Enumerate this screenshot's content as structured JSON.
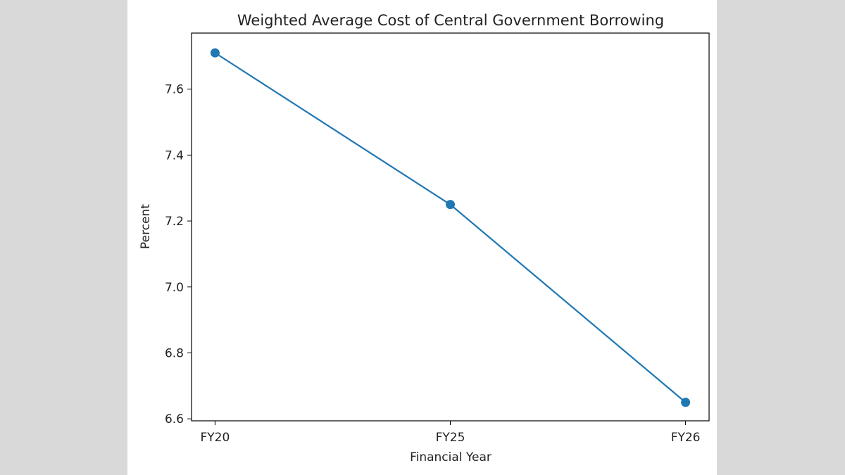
{
  "chart_data": {
    "type": "line",
    "title": "Weighted Average Cost of Central Government Borrowing",
    "xlabel": "Financial Year",
    "ylabel": "Percent",
    "categories": [
      "FY20",
      "FY25",
      "FY26"
    ],
    "values": [
      7.71,
      7.25,
      6.65
    ],
    "ylim": [
      6.594,
      7.77
    ],
    "yticks": [
      6.6,
      6.8,
      7.0,
      7.2,
      7.4,
      7.6
    ],
    "ytick_labels": [
      "6.6",
      "6.8",
      "7.0",
      "7.2",
      "7.4",
      "7.6"
    ],
    "grid": false,
    "markers": true,
    "color": "#1f77b4"
  }
}
